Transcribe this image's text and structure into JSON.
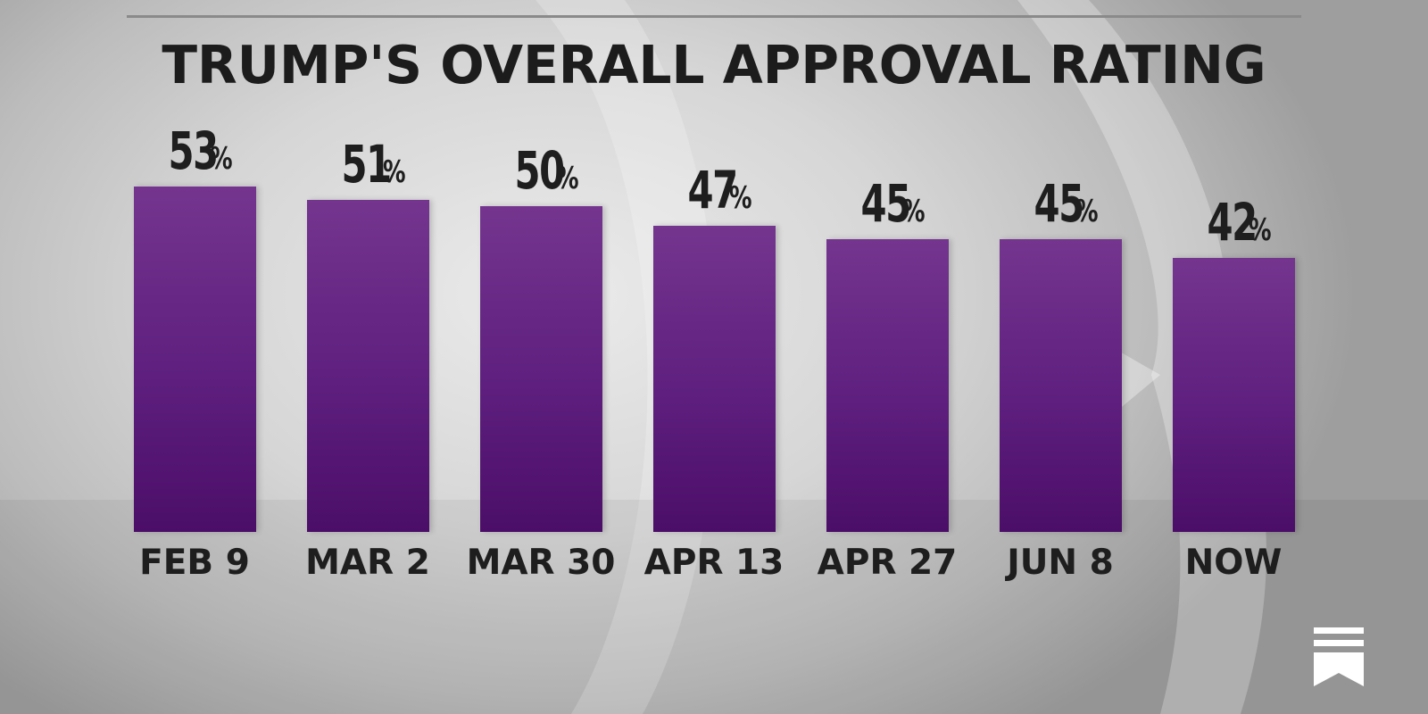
{
  "chart_data": {
    "type": "bar",
    "title": "TRUMP'S OVERALL APPROVAL RATING",
    "categories": [
      "FEB 9",
      "MAR 2",
      "MAR 30",
      "APR 13",
      "APR 27",
      "JUN 8",
      "NOW"
    ],
    "values": [
      53,
      51,
      50,
      47,
      45,
      45,
      42
    ],
    "value_suffix": "%",
    "bar_color": "#62227f",
    "grid": false
  },
  "icons": {
    "bookmark": "bookmark-icon"
  }
}
